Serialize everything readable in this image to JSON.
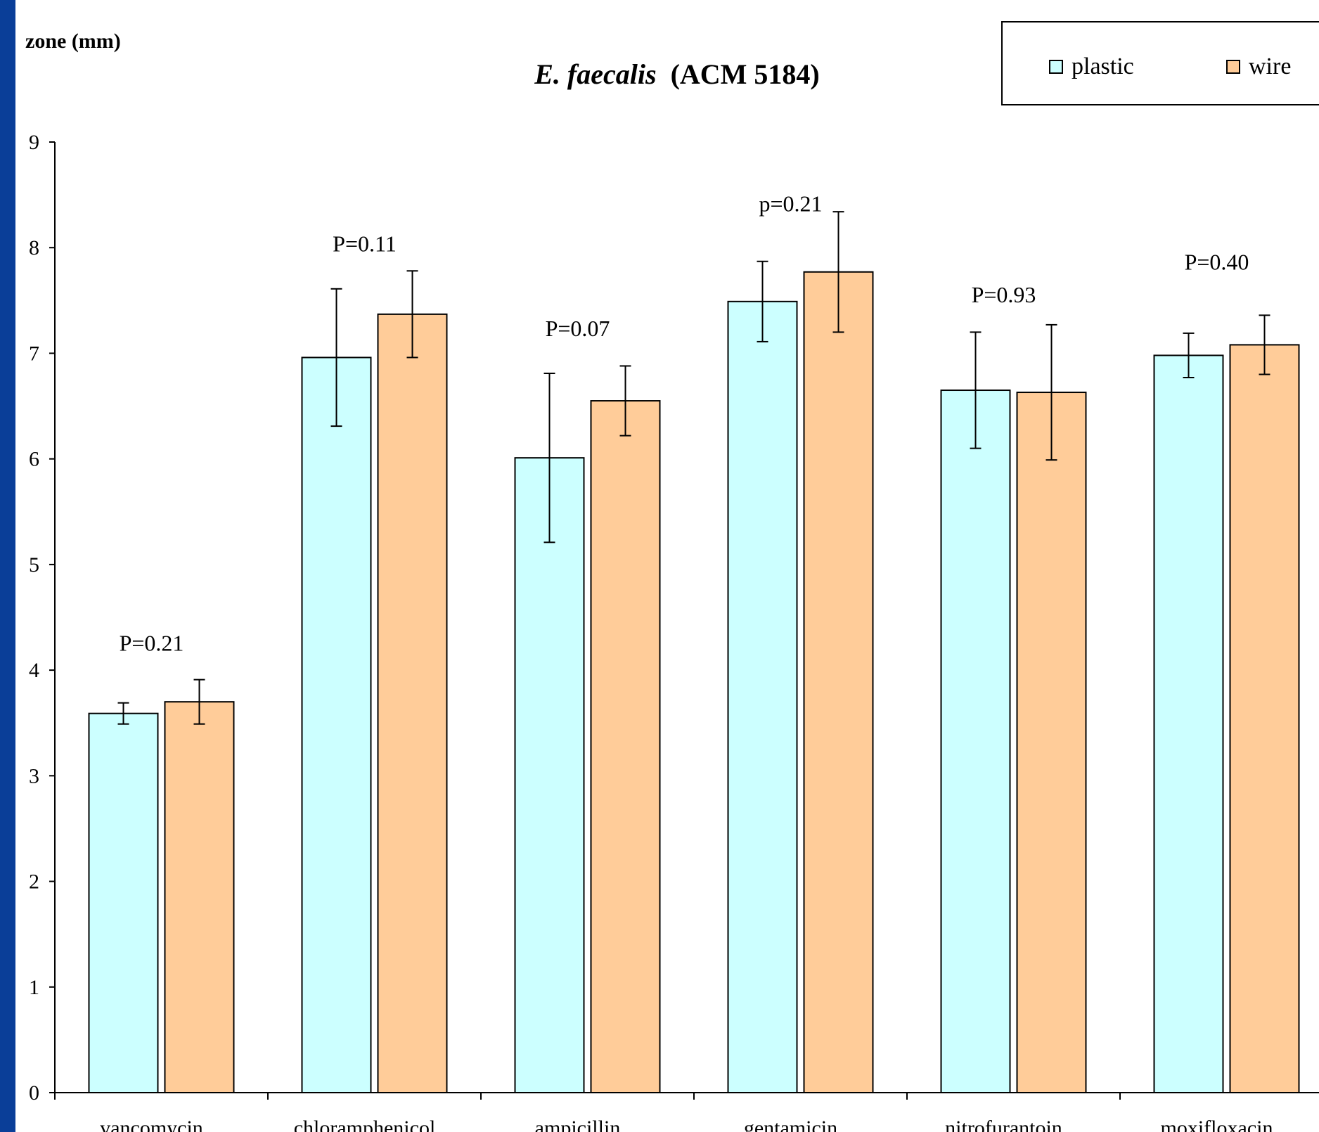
{
  "chart_data": {
    "type": "bar",
    "title_italic": "E. faecalis",
    "title_rest": "(ACM 5184)",
    "ylabel": "zone (mm)",
    "xlabel": "",
    "ylim": [
      0,
      9
    ],
    "yticks": [
      "0",
      "1",
      "2",
      "3",
      "4",
      "5",
      "6",
      "7",
      "8",
      "9"
    ],
    "categories": [
      "vancomycin",
      "chloramphenicol",
      "ampicillin",
      "gentamicin",
      "nitrofurantoin",
      "moxifloxacin"
    ],
    "series": [
      {
        "name": "plastic",
        "color": "#ccffff",
        "values": [
          3.59,
          6.96,
          6.01,
          7.49,
          6.65,
          6.98
        ],
        "errors": [
          0.1,
          0.65,
          0.8,
          0.38,
          0.55,
          0.21
        ]
      },
      {
        "name": "wire",
        "color": "#ffcc99",
        "values": [
          3.7,
          7.37,
          6.55,
          7.77,
          6.63,
          7.08
        ],
        "errors": [
          0.21,
          0.41,
          0.33,
          0.57,
          0.64,
          0.28
        ]
      }
    ],
    "annotations": [
      "P=0.21",
      "P=0.11",
      "P=0.07",
      "p=0.21",
      "P=0.93",
      "P=0.40"
    ],
    "annotation_values": [
      4.25,
      8.03,
      7.23,
      8.41,
      7.55,
      7.86
    ],
    "legend_position": "top-right",
    "grid": false
  }
}
